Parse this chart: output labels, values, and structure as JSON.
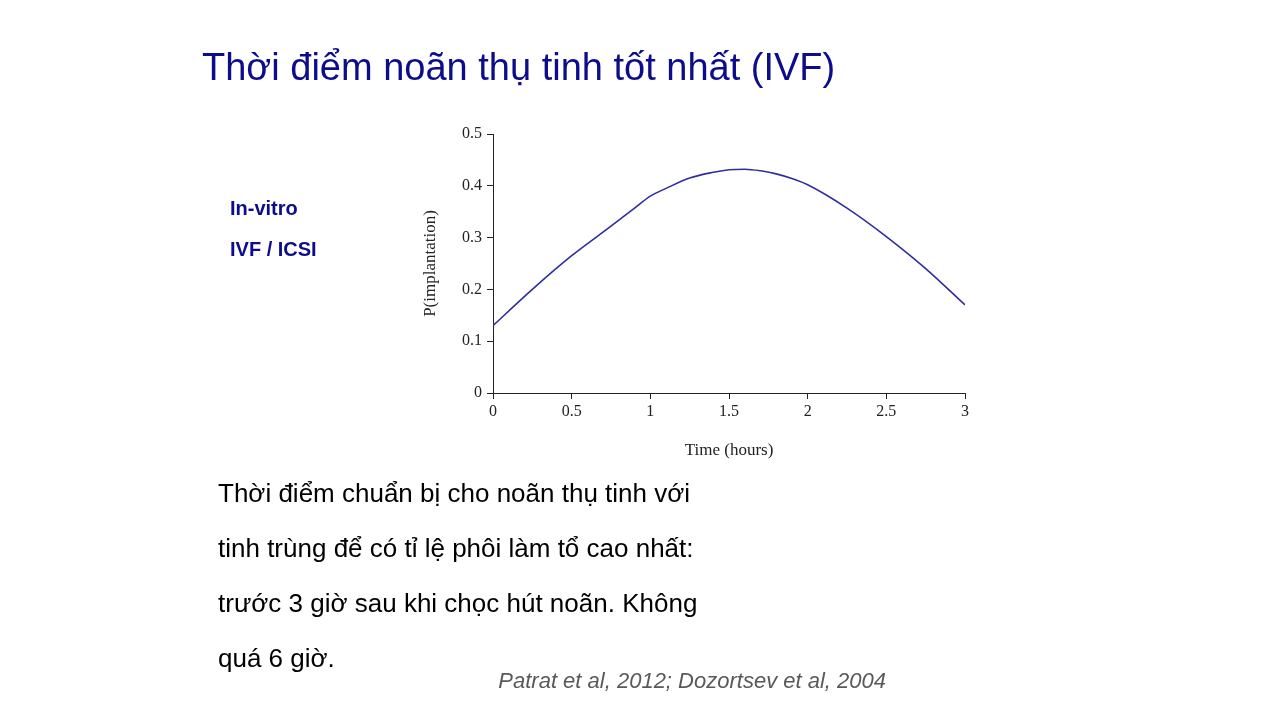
{
  "chart_data": {
    "type": "line",
    "title": "Thời điểm noãn thụ tinh tốt nhất (IVF)",
    "xlabel": "Time (hours)",
    "ylabel": "P(implantation)",
    "annotations": [
      "In-vitro",
      "IVF / ICSI",
      "Thời điểm chuẩn bị cho noãn thụ tinh với tinh trùng để có tỉ lệ phôi làm tổ cao nhất: trước 3 giờ sau khi chọc hút noãn. Không quá 6 giờ.",
      "Patrat et al, 2012; Dozortsev et al, 2004"
    ],
    "x": [
      0,
      0.25,
      0.5,
      0.75,
      0.9,
      1,
      1.1,
      1.25,
      1.4,
      1.5,
      1.6,
      1.7,
      1.8,
      1.9,
      2,
      2.25,
      2.5,
      2.75,
      3
    ],
    "values": [
      0.13,
      0.2,
      0.265,
      0.322,
      0.357,
      0.38,
      0.395,
      0.415,
      0.426,
      0.431,
      0.432,
      0.429,
      0.423,
      0.414,
      0.402,
      0.357,
      0.302,
      0.24,
      0.17
    ],
    "color": "#2e2e9e",
    "xlim": [
      0,
      3
    ],
    "xticks": [
      0,
      0.5,
      1,
      1.5,
      2,
      2.5,
      3
    ],
    "ylim": [
      0,
      0.5
    ],
    "yticks": [
      0,
      0.1,
      0.2,
      0.3,
      0.4,
      0.5
    ],
    "grid": false,
    "legend": false
  }
}
